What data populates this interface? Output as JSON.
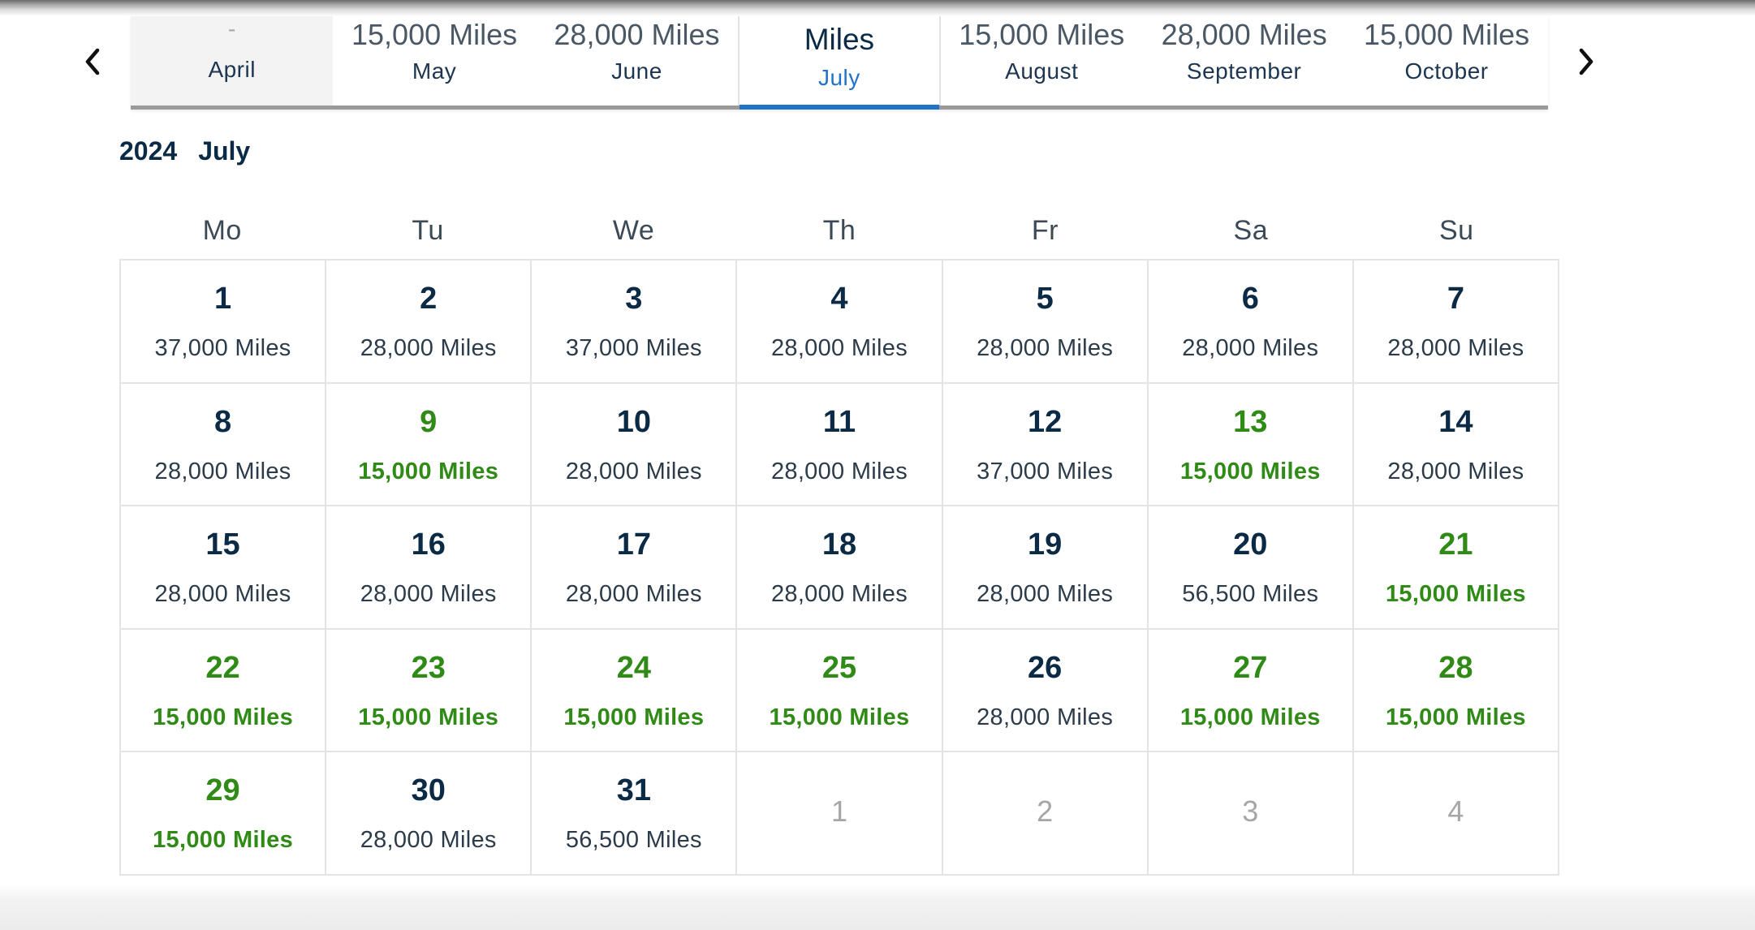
{
  "nav": {
    "prev_icon": "chevron-left-icon",
    "next_icon": "chevron-right-icon"
  },
  "months": [
    {
      "price": "-",
      "name": "April",
      "state": "disabled"
    },
    {
      "price": "15,000 Miles",
      "name": "May",
      "state": "normal"
    },
    {
      "price": "28,000 Miles",
      "name": "June",
      "state": "normal"
    },
    {
      "price": "Miles",
      "name": "July",
      "state": "active"
    },
    {
      "price": "15,000 Miles",
      "name": "August",
      "state": "normal"
    },
    {
      "price": "28,000 Miles",
      "name": "September",
      "state": "normal"
    },
    {
      "price": "15,000 Miles",
      "name": "October",
      "state": "normal"
    }
  ],
  "heading": {
    "year": "2024",
    "month": "July"
  },
  "weekdays": [
    "Mo",
    "Tu",
    "We",
    "Th",
    "Fr",
    "Sa",
    "Su"
  ],
  "days": [
    {
      "day": "1",
      "price": "37,000 Miles"
    },
    {
      "day": "2",
      "price": "28,000 Miles"
    },
    {
      "day": "3",
      "price": "37,000 Miles"
    },
    {
      "day": "4",
      "price": "28,000 Miles"
    },
    {
      "day": "5",
      "price": "28,000 Miles"
    },
    {
      "day": "6",
      "price": "28,000 Miles"
    },
    {
      "day": "7",
      "price": "28,000 Miles"
    },
    {
      "day": "8",
      "price": "28,000 Miles"
    },
    {
      "day": "9",
      "price": "15,000 Miles",
      "low": true
    },
    {
      "day": "10",
      "price": "28,000 Miles"
    },
    {
      "day": "11",
      "price": "28,000 Miles"
    },
    {
      "day": "12",
      "price": "37,000 Miles"
    },
    {
      "day": "13",
      "price": "15,000 Miles",
      "low": true
    },
    {
      "day": "14",
      "price": "28,000 Miles"
    },
    {
      "day": "15",
      "price": "28,000 Miles"
    },
    {
      "day": "16",
      "price": "28,000 Miles"
    },
    {
      "day": "17",
      "price": "28,000 Miles"
    },
    {
      "day": "18",
      "price": "28,000 Miles"
    },
    {
      "day": "19",
      "price": "28,000 Miles"
    },
    {
      "day": "20",
      "price": "56,500 Miles"
    },
    {
      "day": "21",
      "price": "15,000 Miles",
      "low": true
    },
    {
      "day": "22",
      "price": "15,000 Miles",
      "low": true
    },
    {
      "day": "23",
      "price": "15,000 Miles",
      "low": true
    },
    {
      "day": "24",
      "price": "15,000 Miles",
      "low": true
    },
    {
      "day": "25",
      "price": "15,000 Miles",
      "low": true
    },
    {
      "day": "26",
      "price": "28,000 Miles"
    },
    {
      "day": "27",
      "price": "15,000 Miles",
      "low": true
    },
    {
      "day": "28",
      "price": "15,000 Miles",
      "low": true
    },
    {
      "day": "29",
      "price": "15,000 Miles",
      "low": true
    },
    {
      "day": "30",
      "price": "28,000 Miles"
    },
    {
      "day": "31",
      "price": "56,500 Miles"
    },
    {
      "day": "1",
      "price": "",
      "muted": true
    },
    {
      "day": "2",
      "price": "",
      "muted": true
    },
    {
      "day": "3",
      "price": "",
      "muted": true
    },
    {
      "day": "4",
      "price": "",
      "muted": true
    }
  ],
  "colors": {
    "text": "#0b2a45",
    "active_accent": "#1f73c9",
    "low_price": "#2f8a16",
    "muted": "#a6a6a6",
    "border": "#e4e4e4"
  }
}
